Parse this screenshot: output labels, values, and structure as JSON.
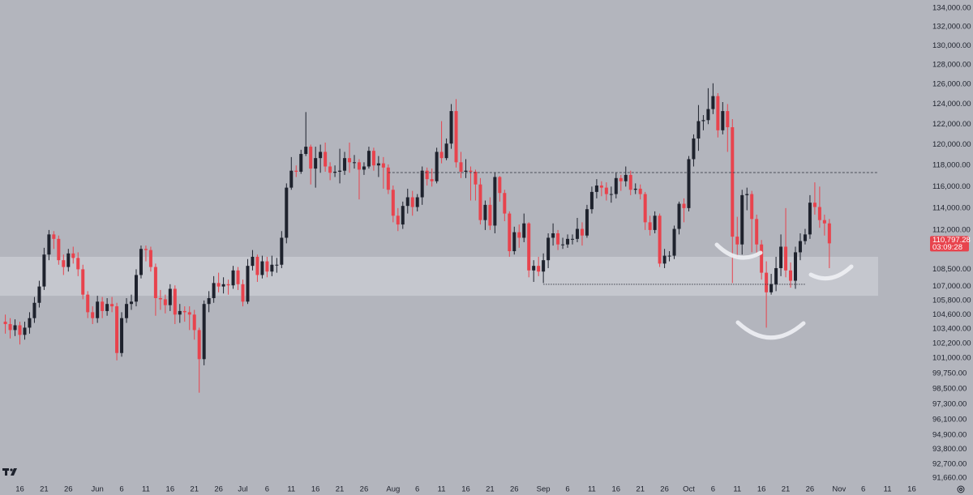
{
  "chart_data": {
    "type": "candlestick",
    "x": [
      "May 13",
      "May 14",
      "May 15",
      "May 16",
      "May 17",
      "May 18",
      "May 19",
      "May 20",
      "May 21",
      "May 22",
      "May 23",
      "May 24",
      "May 25",
      "May 26",
      "May 27",
      "May 28",
      "May 29",
      "May 30",
      "May 31",
      "Jun 1",
      "Jun 2",
      "Jun 3",
      "Jun 4",
      "Jun 5",
      "Jun 6",
      "Jun 7",
      "Jun 8",
      "Jun 9",
      "Jun 10",
      "Jun 11",
      "Jun 12",
      "Jun 13",
      "Jun 14",
      "Jun 15",
      "Jun 16",
      "Jun 17",
      "Jun 18",
      "Jun 19",
      "Jun 20",
      "Jun 21",
      "Jun 22",
      "Jun 23",
      "Jun 24",
      "Jun 25",
      "Jun 26",
      "Jun 27",
      "Jun 28",
      "Jun 29",
      "Jun 30",
      "Jul 1",
      "Jul 2",
      "Jul 3",
      "Jul 4",
      "Jul 5",
      "Jul 6",
      "Jul 7",
      "Jul 8",
      "Jul 9",
      "Jul 10",
      "Jul 11",
      "Jul 12",
      "Jul 13",
      "Jul 14",
      "Jul 15",
      "Jul 16",
      "Jul 17",
      "Jul 18",
      "Jul 19",
      "Jul 20",
      "Jul 21",
      "Jul 22",
      "Jul 23",
      "Jul 24",
      "Jul 25",
      "Jul 26",
      "Jul 27",
      "Jul 28",
      "Jul 29",
      "Jul 30",
      "Jul 31",
      "Aug 1",
      "Aug 2",
      "Aug 3",
      "Aug 4",
      "Aug 5",
      "Aug 6",
      "Aug 7",
      "Aug 8",
      "Aug 9",
      "Aug 10",
      "Aug 11",
      "Aug 12",
      "Aug 13",
      "Aug 14",
      "Aug 15",
      "Aug 16",
      "Aug 17",
      "Aug 18",
      "Aug 19",
      "Aug 20",
      "Aug 21",
      "Aug 22",
      "Aug 23",
      "Aug 24",
      "Aug 25",
      "Aug 26",
      "Aug 27",
      "Aug 28",
      "Aug 29",
      "Aug 30",
      "Aug 31",
      "Sep 1",
      "Sep 2",
      "Sep 3",
      "Sep 4",
      "Sep 5",
      "Sep 6",
      "Sep 7",
      "Sep 8",
      "Sep 9",
      "Sep 10",
      "Sep 11",
      "Sep 12",
      "Sep 13",
      "Sep 14",
      "Sep 15",
      "Sep 16",
      "Sep 17",
      "Sep 18",
      "Sep 19",
      "Sep 20",
      "Sep 21",
      "Sep 22",
      "Sep 23",
      "Sep 24",
      "Sep 25",
      "Sep 26",
      "Sep 27",
      "Sep 28",
      "Sep 29",
      "Sep 30",
      "Oct 1",
      "Oct 2",
      "Oct 3",
      "Oct 4",
      "Oct 5",
      "Oct 6",
      "Oct 7",
      "Oct 8",
      "Oct 9",
      "Oct 10",
      "Oct 11",
      "Oct 12",
      "Oct 13",
      "Oct 14",
      "Oct 15",
      "Oct 16",
      "Oct 17",
      "Oct 18",
      "Oct 19",
      "Oct 20",
      "Oct 21",
      "Oct 22",
      "Oct 23",
      "Oct 24",
      "Oct 25",
      "Oct 26",
      "Oct 27",
      "Oct 28",
      "Oct 29",
      "Oct 30"
    ],
    "open": [
      104000,
      103800,
      103300,
      103700,
      102900,
      103500,
      104300,
      105600,
      107000,
      109800,
      111600,
      111200,
      109300,
      108700,
      109900,
      109500,
      108500,
      106300,
      104800,
      104300,
      105700,
      104900,
      105500,
      105300,
      101400,
      104300,
      105500,
      105700,
      108000,
      110300,
      110200,
      108700,
      106000,
      105900,
      105400,
      106800,
      104600,
      104900,
      104800,
      104600,
      103300,
      100900,
      105500,
      106000,
      107300,
      107000,
      107200,
      107100,
      108400,
      107200,
      105700,
      108800,
      109600,
      108000,
      109200,
      108300,
      108900,
      108900,
      111300,
      115900,
      117500,
      117400,
      119100,
      119800,
      117700,
      118700,
      119300,
      117900,
      117300,
      117400,
      117500,
      118700,
      118300,
      118300,
      117600,
      117900,
      119400,
      118000,
      118200,
      117800,
      115700,
      113300,
      112500,
      114200,
      115000,
      114100,
      115000,
      117500,
      116700,
      116500,
      119300,
      118700,
      120100,
      123300,
      118300,
      117400,
      117500,
      117400,
      116200,
      112900,
      114300,
      112400,
      116900,
      115400,
      113500,
      110100,
      111800,
      111300,
      112600,
      108400,
      108800,
      108300,
      109300,
      111300,
      111700,
      110700,
      110700,
      111200,
      111200,
      112100,
      111500,
      113900,
      115500,
      116100,
      115900,
      115300,
      115300,
      116800,
      116500,
      117100,
      115700,
      115800,
      115300,
      112700,
      112000,
      113300,
      109000,
      109700,
      109700,
      112100,
      114400,
      114000,
      118600,
      120600,
      122300,
      122400,
      123500,
      124800,
      121400,
      123300,
      121700,
      111400,
      110700,
      115200,
      115300,
      113000,
      110700,
      108200,
      106500,
      107200,
      108600,
      110500,
      108400,
      107500,
      110000,
      111000,
      111600,
      114500,
      114100,
      112900,
      112600
    ],
    "high": [
      104600,
      104300,
      104200,
      104000,
      104000,
      104800,
      106100,
      107500,
      110400,
      112000,
      111900,
      111500,
      109800,
      110300,
      110500,
      110000,
      108900,
      106600,
      105300,
      106200,
      106100,
      106000,
      106100,
      105600,
      104800,
      106000,
      106300,
      108500,
      110600,
      110600,
      110500,
      109000,
      106700,
      106300,
      107200,
      107100,
      105500,
      105300,
      105300,
      105000,
      103500,
      105800,
      106600,
      107900,
      108200,
      107800,
      107600,
      108800,
      108700,
      107600,
      109400,
      110200,
      109800,
      109700,
      109600,
      109700,
      109500,
      111900,
      116300,
      118800,
      118000,
      119500,
      123200,
      120000,
      119800,
      120000,
      120200,
      118300,
      118000,
      119600,
      119300,
      120200,
      119000,
      118600,
      118300,
      119800,
      119700,
      118900,
      118800,
      118100,
      116100,
      114000,
      114600,
      115800,
      115600,
      115300,
      117900,
      117800,
      117700,
      119700,
      122300,
      120600,
      124000,
      124500,
      119300,
      118600,
      117900,
      117600,
      116800,
      114700,
      115000,
      117300,
      117000,
      115700,
      113700,
      112300,
      112500,
      113500,
      112700,
      109300,
      109600,
      109900,
      111700,
      112600,
      112000,
      111300,
      111600,
      111600,
      113100,
      112700,
      114300,
      116000,
      116700,
      116500,
      116400,
      116000,
      117300,
      117100,
      117900,
      117500,
      116300,
      116200,
      115500,
      113300,
      113700,
      113500,
      110300,
      110100,
      112400,
      114600,
      114900,
      118900,
      121000,
      123900,
      122900,
      125600,
      126100,
      125100,
      124200,
      124000,
      122500,
      113200,
      115700,
      115900,
      115600,
      113400,
      111100,
      109200,
      108100,
      109600,
      111600,
      114000,
      109100,
      110500,
      111700,
      112100,
      115200,
      116400,
      116000,
      113400,
      113000
    ],
    "low": [
      103000,
      102600,
      102800,
      102100,
      102500,
      103000,
      103900,
      105200,
      106700,
      109300,
      110300,
      108900,
      108000,
      108300,
      109000,
      107900,
      105900,
      104300,
      103800,
      103900,
      104300,
      104500,
      104800,
      100800,
      101100,
      103900,
      105000,
      105300,
      107700,
      109200,
      108300,
      104500,
      105000,
      104700,
      104900,
      103800,
      103900,
      104000,
      103300,
      102500,
      98200,
      100400,
      104800,
      105600,
      106500,
      106400,
      106300,
      106800,
      106700,
      105300,
      105500,
      108400,
      107400,
      107700,
      107800,
      107900,
      108200,
      108600,
      110800,
      115700,
      116900,
      117200,
      118900,
      116200,
      115900,
      117300,
      117400,
      116600,
      116900,
      116300,
      117100,
      117300,
      117700,
      114800,
      117100,
      117700,
      117500,
      116900,
      115800,
      115300,
      112700,
      111900,
      112100,
      113500,
      113300,
      113700,
      114300,
      116100,
      116000,
      116300,
      118200,
      118500,
      119600,
      117800,
      116800,
      116800,
      114700,
      114700,
      112500,
      112000,
      112000,
      111700,
      114600,
      112800,
      109600,
      109800,
      110400,
      110900,
      107800,
      107400,
      107900,
      107300,
      108600,
      110600,
      110200,
      110300,
      110400,
      110700,
      110900,
      110600,
      111300,
      113500,
      114900,
      115100,
      114700,
      114500,
      114900,
      115600,
      116000,
      115200,
      115300,
      114800,
      112000,
      111500,
      111700,
      108700,
      108600,
      109200,
      109400,
      111600,
      112700,
      113700,
      117900,
      119400,
      121400,
      122000,
      123000,
      120700,
      121000,
      119300,
      107300,
      109500,
      109800,
      113800,
      110000,
      109900,
      107600,
      103500,
      106300,
      106600,
      107900,
      107800,
      106900,
      106800,
      109300,
      110700,
      111200,
      113400,
      112200,
      111500,
      108600
    ],
    "close": [
      103800,
      103300,
      103700,
      102900,
      103500,
      104300,
      105600,
      107000,
      109800,
      111600,
      111200,
      109300,
      108700,
      109900,
      109500,
      108500,
      106300,
      104800,
      104300,
      105700,
      104900,
      105500,
      105300,
      101400,
      104300,
      105500,
      105700,
      108000,
      110300,
      110200,
      108700,
      106000,
      105900,
      105400,
      106800,
      104600,
      104900,
      104800,
      104600,
      103300,
      100900,
      105500,
      106000,
      107300,
      107000,
      107200,
      107100,
      108400,
      107200,
      105700,
      108800,
      109600,
      108000,
      109200,
      108300,
      108900,
      108900,
      111300,
      115900,
      117500,
      117400,
      119100,
      119800,
      117700,
      118700,
      119300,
      117900,
      117300,
      117400,
      117500,
      118700,
      118300,
      118300,
      117600,
      117900,
      119400,
      118000,
      118200,
      117800,
      115700,
      113300,
      112500,
      114200,
      115000,
      114100,
      115000,
      117500,
      116700,
      116500,
      119300,
      118700,
      120100,
      123300,
      118300,
      117400,
      117500,
      117400,
      116200,
      112900,
      114300,
      112400,
      116900,
      115400,
      113500,
      110100,
      111800,
      111300,
      112600,
      108400,
      108800,
      108300,
      109300,
      111300,
      111700,
      110700,
      110700,
      111200,
      111200,
      112100,
      111500,
      113900,
      115500,
      116100,
      115900,
      115300,
      115300,
      116800,
      116500,
      117100,
      115700,
      115800,
      115300,
      112700,
      112000,
      113300,
      109000,
      109700,
      109700,
      112100,
      114400,
      114000,
      118600,
      120600,
      122300,
      122400,
      123500,
      124800,
      121400,
      123300,
      121700,
      111400,
      110700,
      115200,
      115300,
      113000,
      110700,
      108200,
      106500,
      107200,
      108600,
      110500,
      108400,
      107500,
      110000,
      111000,
      111600,
      114500,
      114100,
      112900,
      112600,
      110797.28
    ],
    "up_color": "#1e222d",
    "down_color": "#e8434d",
    "xlim": [
      -1.1,
      190.1
    ],
    "xticks": [
      {
        "value": 3,
        "label": "16"
      },
      {
        "value": 8,
        "label": "21"
      },
      {
        "value": 13,
        "label": "26"
      },
      {
        "value": 19,
        "label": "Jun"
      },
      {
        "value": 24,
        "label": "6"
      },
      {
        "value": 29,
        "label": "11"
      },
      {
        "value": 34,
        "label": "16"
      },
      {
        "value": 39,
        "label": "21"
      },
      {
        "value": 44,
        "label": "26"
      },
      {
        "value": 49,
        "label": "Jul"
      },
      {
        "value": 54,
        "label": "6"
      },
      {
        "value": 59,
        "label": "11"
      },
      {
        "value": 64,
        "label": "16"
      },
      {
        "value": 69,
        "label": "21"
      },
      {
        "value": 74,
        "label": "26"
      },
      {
        "value": 80,
        "label": "Aug"
      },
      {
        "value": 85,
        "label": "6"
      },
      {
        "value": 90,
        "label": "11"
      },
      {
        "value": 95,
        "label": "16"
      },
      {
        "value": 100,
        "label": "21"
      },
      {
        "value": 105,
        "label": "26"
      },
      {
        "value": 111,
        "label": "Sep"
      },
      {
        "value": 116,
        "label": "6"
      },
      {
        "value": 121,
        "label": "11"
      },
      {
        "value": 126,
        "label": "16"
      },
      {
        "value": 131,
        "label": "21"
      },
      {
        "value": 136,
        "label": "26"
      },
      {
        "value": 141,
        "label": "Oct"
      },
      {
        "value": 146,
        "label": "6"
      },
      {
        "value": 151,
        "label": "11"
      },
      {
        "value": 156,
        "label": "16"
      },
      {
        "value": 161,
        "label": "21"
      },
      {
        "value": 166,
        "label": "26"
      },
      {
        "value": 172,
        "label": "Nov"
      },
      {
        "value": 177,
        "label": "6"
      },
      {
        "value": 182,
        "label": "11"
      },
      {
        "value": 187,
        "label": "16"
      }
    ],
    "ylim": [
      91180,
      134880
    ],
    "log_y": true,
    "yticks": [
      {
        "value": 134000,
        "label": "134,000.00"
      },
      {
        "value": 132000,
        "label": "132,000.00"
      },
      {
        "value": 130000,
        "label": "130,000.00"
      },
      {
        "value": 128000,
        "label": "128,000.00"
      },
      {
        "value": 126000,
        "label": "126,000.00"
      },
      {
        "value": 124000,
        "label": "124,000.00"
      },
      {
        "value": 122000,
        "label": "122,000.00"
      },
      {
        "value": 120000,
        "label": "120,000.00"
      },
      {
        "value": 118000,
        "label": "118,000.00"
      },
      {
        "value": 116000,
        "label": "116,000.00"
      },
      {
        "value": 114000,
        "label": "114,000.00"
      },
      {
        "value": 112000,
        "label": "112,000.00"
      },
      {
        "value": 108500,
        "label": "108,500.00"
      },
      {
        "value": 107000,
        "label": "107,000.00"
      },
      {
        "value": 105800,
        "label": "105,800.00"
      },
      {
        "value": 104600,
        "label": "104,600.00"
      },
      {
        "value": 103400,
        "label": "103,400.00"
      },
      {
        "value": 102200,
        "label": "102,200.00"
      },
      {
        "value": 101000,
        "label": "101,000.00"
      },
      {
        "value": 99750,
        "label": "99,750.00"
      },
      {
        "value": 98500,
        "label": "98,500.00"
      },
      {
        "value": 97300,
        "label": "97,300.00"
      },
      {
        "value": 96100,
        "label": "96,100.00"
      },
      {
        "value": 94900,
        "label": "94,900.00"
      },
      {
        "value": 93800,
        "label": "93,800.00"
      },
      {
        "value": 92700,
        "label": "92,700.00"
      },
      {
        "value": 91660,
        "label": "91,660.00"
      }
    ],
    "zone": {
      "low": 106200,
      "high": 109600
    },
    "levels": [
      {
        "value": 117320,
        "start": "Jul 31"
      },
      {
        "value": 107190,
        "start": "Sep 1",
        "end": "Oct 25"
      }
    ],
    "last_price": {
      "value": 110797.28,
      "label": "110,797.28"
    },
    "countdown": "03:09:28"
  }
}
